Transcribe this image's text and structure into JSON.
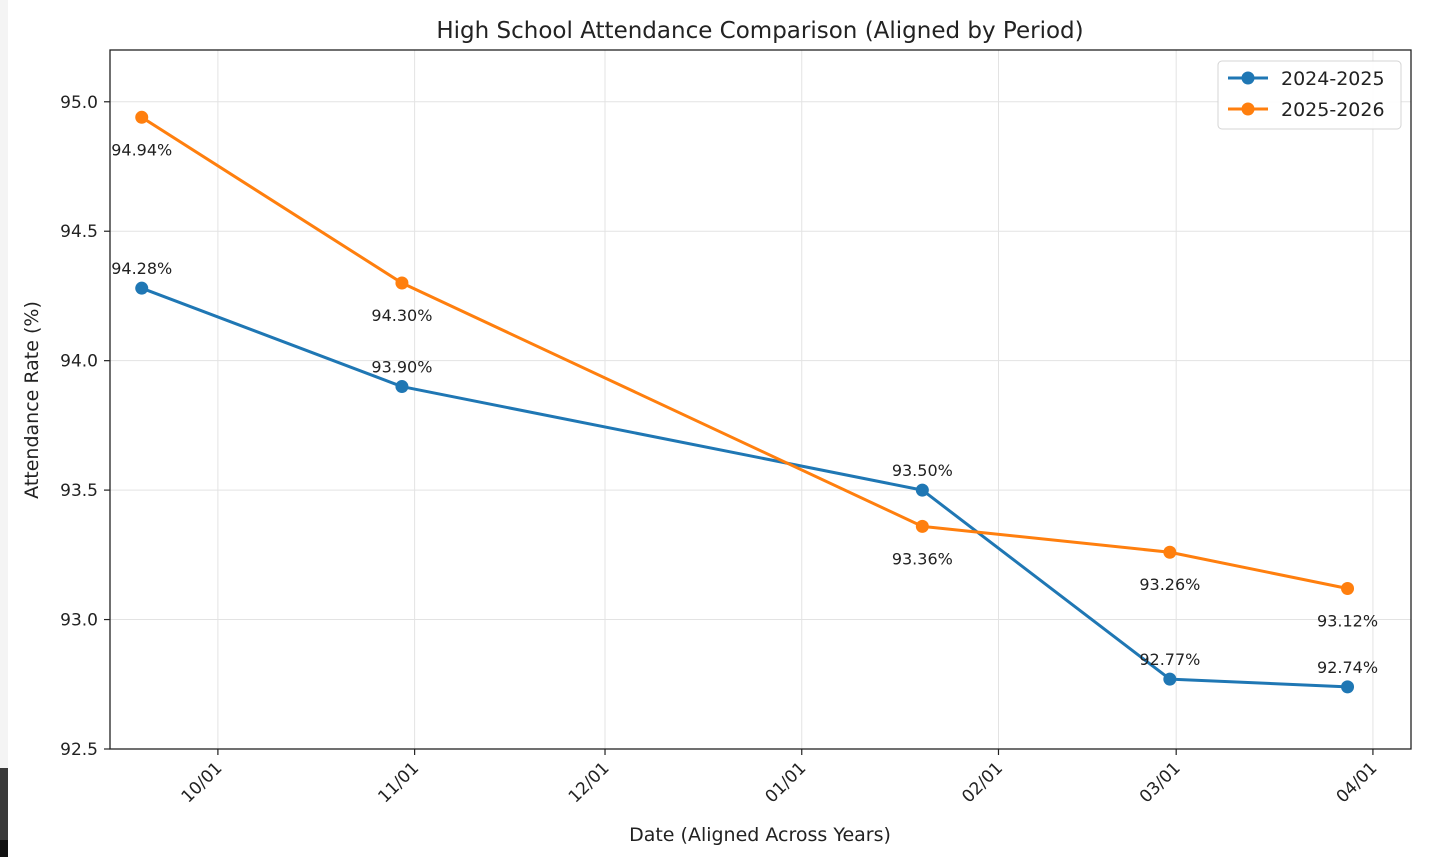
{
  "chart_data": {
    "type": "line",
    "title": "High School Attendance Comparison (Aligned by Period)",
    "xlabel": "Date (Aligned Across Years)",
    "ylabel": "Attendance Rate (%)",
    "ylim": [
      92.5,
      95.2
    ],
    "y_ticks": [
      92.5,
      93.0,
      93.5,
      94.0,
      94.5,
      95.0
    ],
    "y_tick_labels": [
      "92.5",
      "93.0",
      "93.5",
      "94.0",
      "94.5",
      "95.0"
    ],
    "xlim": [
      "09-14",
      "04-07"
    ],
    "x_ticks": [
      "10-01",
      "11-01",
      "12-01",
      "01-01",
      "02-01",
      "03-01",
      "04-01"
    ],
    "x_tick_labels": [
      "10/01",
      "11/01",
      "12/01",
      "01/01",
      "02/01",
      "03/01",
      "04/01"
    ],
    "grid": true,
    "legend_position": "top-right",
    "series": [
      {
        "name": "2024-2025",
        "color": "#1f77b4",
        "x": [
          "09-19",
          "10-30",
          "01-20",
          "02-28",
          "03-28"
        ],
        "values": [
          94.28,
          93.9,
          93.5,
          92.77,
          92.74
        ],
        "labels": [
          "94.28%",
          "93.90%",
          "93.50%",
          "92.77%",
          "92.74%"
        ],
        "label_position": "above"
      },
      {
        "name": "2025-2026",
        "color": "#ff7f0e",
        "x": [
          "09-19",
          "10-30",
          "01-20",
          "02-28",
          "03-28"
        ],
        "values": [
          94.94,
          94.3,
          93.36,
          93.26,
          93.12
        ],
        "labels": [
          "94.94%",
          "94.30%",
          "93.36%",
          "93.26%",
          "93.12%"
        ],
        "label_position": "below"
      }
    ]
  }
}
